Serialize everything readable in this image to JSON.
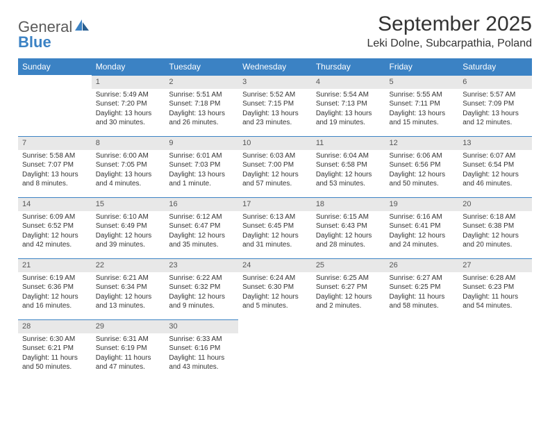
{
  "brand": {
    "name_a": "General",
    "name_b": "Blue"
  },
  "colors": {
    "accent": "#3b82c4",
    "header_bg": "#3b82c4",
    "header_text": "#ffffff",
    "daynum_bg": "#e8e8e8",
    "daynum_text": "#555555",
    "body_text": "#333333",
    "page_bg": "#ffffff"
  },
  "typography": {
    "month_fontsize": 30,
    "location_fontsize": 16,
    "header_fontsize": 12,
    "cell_fontsize": 10
  },
  "title": "September 2025",
  "location": "Leki Dolne, Subcarpathia, Poland",
  "weekdays": [
    "Sunday",
    "Monday",
    "Tuesday",
    "Wednesday",
    "Thursday",
    "Friday",
    "Saturday"
  ],
  "calendar": {
    "type": "table",
    "columns": 7,
    "rows": 5,
    "weeks": [
      [
        {
          "date": "",
          "sunrise": "",
          "sunset": "",
          "daylight": ""
        },
        {
          "date": "1",
          "sunrise": "Sunrise: 5:49 AM",
          "sunset": "Sunset: 7:20 PM",
          "daylight": "Daylight: 13 hours and 30 minutes."
        },
        {
          "date": "2",
          "sunrise": "Sunrise: 5:51 AM",
          "sunset": "Sunset: 7:18 PM",
          "daylight": "Daylight: 13 hours and 26 minutes."
        },
        {
          "date": "3",
          "sunrise": "Sunrise: 5:52 AM",
          "sunset": "Sunset: 7:15 PM",
          "daylight": "Daylight: 13 hours and 23 minutes."
        },
        {
          "date": "4",
          "sunrise": "Sunrise: 5:54 AM",
          "sunset": "Sunset: 7:13 PM",
          "daylight": "Daylight: 13 hours and 19 minutes."
        },
        {
          "date": "5",
          "sunrise": "Sunrise: 5:55 AM",
          "sunset": "Sunset: 7:11 PM",
          "daylight": "Daylight: 13 hours and 15 minutes."
        },
        {
          "date": "6",
          "sunrise": "Sunrise: 5:57 AM",
          "sunset": "Sunset: 7:09 PM",
          "daylight": "Daylight: 13 hours and 12 minutes."
        }
      ],
      [
        {
          "date": "7",
          "sunrise": "Sunrise: 5:58 AM",
          "sunset": "Sunset: 7:07 PM",
          "daylight": "Daylight: 13 hours and 8 minutes."
        },
        {
          "date": "8",
          "sunrise": "Sunrise: 6:00 AM",
          "sunset": "Sunset: 7:05 PM",
          "daylight": "Daylight: 13 hours and 4 minutes."
        },
        {
          "date": "9",
          "sunrise": "Sunrise: 6:01 AM",
          "sunset": "Sunset: 7:03 PM",
          "daylight": "Daylight: 13 hours and 1 minute."
        },
        {
          "date": "10",
          "sunrise": "Sunrise: 6:03 AM",
          "sunset": "Sunset: 7:00 PM",
          "daylight": "Daylight: 12 hours and 57 minutes."
        },
        {
          "date": "11",
          "sunrise": "Sunrise: 6:04 AM",
          "sunset": "Sunset: 6:58 PM",
          "daylight": "Daylight: 12 hours and 53 minutes."
        },
        {
          "date": "12",
          "sunrise": "Sunrise: 6:06 AM",
          "sunset": "Sunset: 6:56 PM",
          "daylight": "Daylight: 12 hours and 50 minutes."
        },
        {
          "date": "13",
          "sunrise": "Sunrise: 6:07 AM",
          "sunset": "Sunset: 6:54 PM",
          "daylight": "Daylight: 12 hours and 46 minutes."
        }
      ],
      [
        {
          "date": "14",
          "sunrise": "Sunrise: 6:09 AM",
          "sunset": "Sunset: 6:52 PM",
          "daylight": "Daylight: 12 hours and 42 minutes."
        },
        {
          "date": "15",
          "sunrise": "Sunrise: 6:10 AM",
          "sunset": "Sunset: 6:49 PM",
          "daylight": "Daylight: 12 hours and 39 minutes."
        },
        {
          "date": "16",
          "sunrise": "Sunrise: 6:12 AM",
          "sunset": "Sunset: 6:47 PM",
          "daylight": "Daylight: 12 hours and 35 minutes."
        },
        {
          "date": "17",
          "sunrise": "Sunrise: 6:13 AM",
          "sunset": "Sunset: 6:45 PM",
          "daylight": "Daylight: 12 hours and 31 minutes."
        },
        {
          "date": "18",
          "sunrise": "Sunrise: 6:15 AM",
          "sunset": "Sunset: 6:43 PM",
          "daylight": "Daylight: 12 hours and 28 minutes."
        },
        {
          "date": "19",
          "sunrise": "Sunrise: 6:16 AM",
          "sunset": "Sunset: 6:41 PM",
          "daylight": "Daylight: 12 hours and 24 minutes."
        },
        {
          "date": "20",
          "sunrise": "Sunrise: 6:18 AM",
          "sunset": "Sunset: 6:38 PM",
          "daylight": "Daylight: 12 hours and 20 minutes."
        }
      ],
      [
        {
          "date": "21",
          "sunrise": "Sunrise: 6:19 AM",
          "sunset": "Sunset: 6:36 PM",
          "daylight": "Daylight: 12 hours and 16 minutes."
        },
        {
          "date": "22",
          "sunrise": "Sunrise: 6:21 AM",
          "sunset": "Sunset: 6:34 PM",
          "daylight": "Daylight: 12 hours and 13 minutes."
        },
        {
          "date": "23",
          "sunrise": "Sunrise: 6:22 AM",
          "sunset": "Sunset: 6:32 PM",
          "daylight": "Daylight: 12 hours and 9 minutes."
        },
        {
          "date": "24",
          "sunrise": "Sunrise: 6:24 AM",
          "sunset": "Sunset: 6:30 PM",
          "daylight": "Daylight: 12 hours and 5 minutes."
        },
        {
          "date": "25",
          "sunrise": "Sunrise: 6:25 AM",
          "sunset": "Sunset: 6:27 PM",
          "daylight": "Daylight: 12 hours and 2 minutes."
        },
        {
          "date": "26",
          "sunrise": "Sunrise: 6:27 AM",
          "sunset": "Sunset: 6:25 PM",
          "daylight": "Daylight: 11 hours and 58 minutes."
        },
        {
          "date": "27",
          "sunrise": "Sunrise: 6:28 AM",
          "sunset": "Sunset: 6:23 PM",
          "daylight": "Daylight: 11 hours and 54 minutes."
        }
      ],
      [
        {
          "date": "28",
          "sunrise": "Sunrise: 6:30 AM",
          "sunset": "Sunset: 6:21 PM",
          "daylight": "Daylight: 11 hours and 50 minutes."
        },
        {
          "date": "29",
          "sunrise": "Sunrise: 6:31 AM",
          "sunset": "Sunset: 6:19 PM",
          "daylight": "Daylight: 11 hours and 47 minutes."
        },
        {
          "date": "30",
          "sunrise": "Sunrise: 6:33 AM",
          "sunset": "Sunset: 6:16 PM",
          "daylight": "Daylight: 11 hours and 43 minutes."
        },
        {
          "date": "",
          "sunrise": "",
          "sunset": "",
          "daylight": ""
        },
        {
          "date": "",
          "sunrise": "",
          "sunset": "",
          "daylight": ""
        },
        {
          "date": "",
          "sunrise": "",
          "sunset": "",
          "daylight": ""
        },
        {
          "date": "",
          "sunrise": "",
          "sunset": "",
          "daylight": ""
        }
      ]
    ]
  }
}
